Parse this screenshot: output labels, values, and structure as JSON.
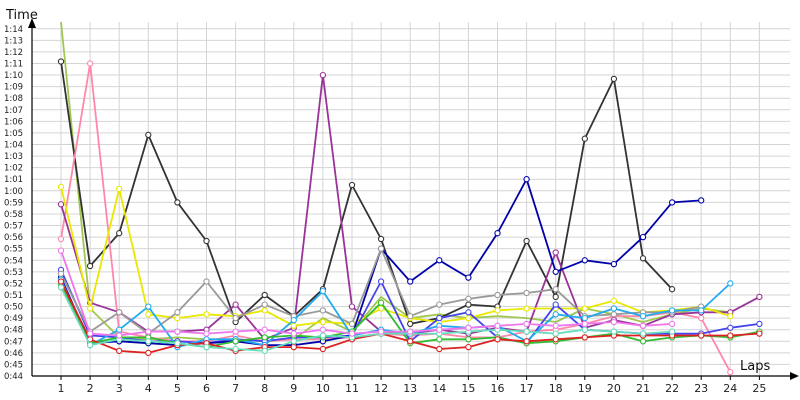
{
  "chart_data": {
    "type": "line",
    "title": "",
    "xlabel": "Laps",
    "ylabel": "Time",
    "x": [
      1,
      2,
      3,
      4,
      5,
      6,
      7,
      8,
      9,
      10,
      11,
      12,
      13,
      14,
      15,
      16,
      17,
      18,
      19,
      20,
      21,
      22,
      23,
      24,
      25
    ],
    "ylim_seconds": [
      2640,
      4475
    ],
    "y_tick_labels": [
      "0:44",
      "0:45",
      "0:46",
      "0:47",
      "0:48",
      "0:49",
      "0:50",
      "0:51",
      "0:52",
      "0:53",
      "0:54",
      "0:55",
      "0:56",
      "0:57",
      "0:58",
      "0:59",
      "1:00",
      "1:01",
      "1:02",
      "1:03",
      "1:04",
      "1:05",
      "1:06",
      "1:07",
      "1:08",
      "1:09",
      "1:10",
      "1:11",
      "1:12",
      "1:13",
      "1:14"
    ],
    "y_tick_seconds": [
      2640,
      2700,
      2760,
      2820,
      2880,
      2940,
      3000,
      3060,
      3120,
      3180,
      3240,
      3300,
      3360,
      3420,
      3480,
      3540,
      3600,
      3660,
      3720,
      3780,
      3840,
      3900,
      3960,
      4020,
      4080,
      4140,
      4200,
      4260,
      4320,
      4380,
      4440
    ],
    "grid": true,
    "legend": "none",
    "series": [
      {
        "color": "#a0c850",
        "marker": "none",
        "values": [
          4475,
          2990,
          2840,
          2830,
          2840,
          2830,
          2830,
          2820,
          2830,
          2940,
          2870,
          3050,
          2940,
          2960,
          2940,
          2950,
          2940,
          2920,
          2990,
          2960,
          2920,
          2960,
          2990,
          2970,
          null
        ]
      },
      {
        "color": "#333333",
        "marker": "circle",
        "values": [
          4270,
          3210,
          3380,
          3890,
          3540,
          3340,
          2920,
          3060,
          2950,
          3090,
          3630,
          3350,
          2910,
          2940,
          3010,
          3000,
          3340,
          3050,
          3870,
          4180,
          3250,
          3090,
          null,
          null,
          null
        ]
      },
      {
        "color": "#ff88aa",
        "marker": "circle",
        "values": [
          3350,
          4260,
          2870,
          2840,
          2820,
          2820,
          2850,
          2820,
          2830,
          2830,
          2840,
          2860,
          2850,
          2860,
          2840,
          2840,
          2870,
          2880,
          2910,
          2950,
          2950,
          2970,
          2940,
          2660,
          null
        ]
      },
      {
        "color": "#993399",
        "marker": "circle",
        "values": [
          3530,
          3020,
          2970,
          2870,
          2870,
          2880,
          3010,
          2830,
          2890,
          4200,
          3000,
          2870,
          2860,
          2880,
          2860,
          2890,
          2870,
          3280,
          2890,
          2930,
          2900,
          2960,
          2970,
          2970,
          3050
        ]
      },
      {
        "color": "#e8e800",
        "marker": "circle",
        "values": [
          3620,
          2990,
          3610,
          2960,
          2940,
          2960,
          2950,
          2980,
          2900,
          2920,
          2910,
          2990,
          2940,
          2920,
          2940,
          2980,
          2990,
          2990,
          2990,
          3030,
          2970,
          2980,
          3000,
          2950,
          null
        ]
      },
      {
        "color": "#4444ee",
        "marker": "circle",
        "values": [
          3190,
          2850,
          2840,
          2820,
          2820,
          2810,
          2830,
          2820,
          2840,
          2840,
          2850,
          3130,
          2820,
          2940,
          2970,
          2840,
          2810,
          3010,
          2880,
          2870,
          2860,
          2860,
          2860,
          2890,
          2910
        ]
      },
      {
        "color": "#0000aa",
        "marker": "circle",
        "values": [
          3150,
          2810,
          2820,
          2810,
          2800,
          2810,
          2820,
          2800,
          2800,
          2820,
          2850,
          3300,
          3130,
          3240,
          3150,
          3380,
          3660,
          3180,
          3240,
          3220,
          3360,
          3540,
          3550,
          null,
          null
        ]
      },
      {
        "color": "#999999",
        "marker": "circle",
        "values": [
          3170,
          2870,
          2970,
          2860,
          2970,
          3130,
          2940,
          3010,
          2950,
          2980,
          2910,
          3300,
          2950,
          3010,
          3040,
          3060,
          3070,
          3090,
          2950,
          2960,
          2970,
          2970,
          3000,
          null,
          null
        ]
      },
      {
        "color": "#22aaee",
        "marker": "circle",
        "values": [
          3140,
          2800,
          2880,
          3000,
          2790,
          2830,
          2830,
          2800,
          2930,
          3080,
          2850,
          2880,
          2860,
          2900,
          2890,
          2900,
          2820,
          2960,
          2940,
          2990,
          2950,
          2980,
          2980,
          3120,
          null
        ]
      },
      {
        "color": "#33bb33",
        "marker": "circle",
        "values": [
          3110,
          2810,
          2840,
          2840,
          2810,
          2790,
          2820,
          2840,
          2850,
          2840,
          2870,
          3020,
          2810,
          2830,
          2830,
          2840,
          2810,
          2820,
          2840,
          2860,
          2820,
          2840,
          2850,
          2840,
          2870
        ]
      },
      {
        "color": "#dd2222",
        "marker": "circle",
        "values": [
          3130,
          2830,
          2770,
          2760,
          2800,
          2810,
          2770,
          2790,
          2790,
          2780,
          2830,
          2860,
          2820,
          2780,
          2790,
          2830,
          2820,
          2830,
          2840,
          2850,
          2850,
          2850,
          2850,
          2850,
          2860
        ]
      },
      {
        "color": "#66ddbb",
        "marker": "circle",
        "values": [
          3100,
          2800,
          2830,
          2820,
          2810,
          2790,
          2780,
          2770,
          2820,
          2850,
          2840,
          2860,
          2860,
          2860,
          2870,
          2880,
          2870,
          2860,
          2880,
          2870,
          2860,
          2870,
          null,
          null,
          null
        ]
      },
      {
        "color": "#ee77ee",
        "marker": "circle",
        "values": [
          3290,
          2860,
          2850,
          2870,
          2870,
          2860,
          2870,
          2880,
          2860,
          2880,
          2860,
          2870,
          2870,
          2880,
          2890,
          2900,
          2910,
          2900,
          2910,
          2920,
          2900,
          2910,
          null,
          null,
          null
        ]
      }
    ]
  }
}
